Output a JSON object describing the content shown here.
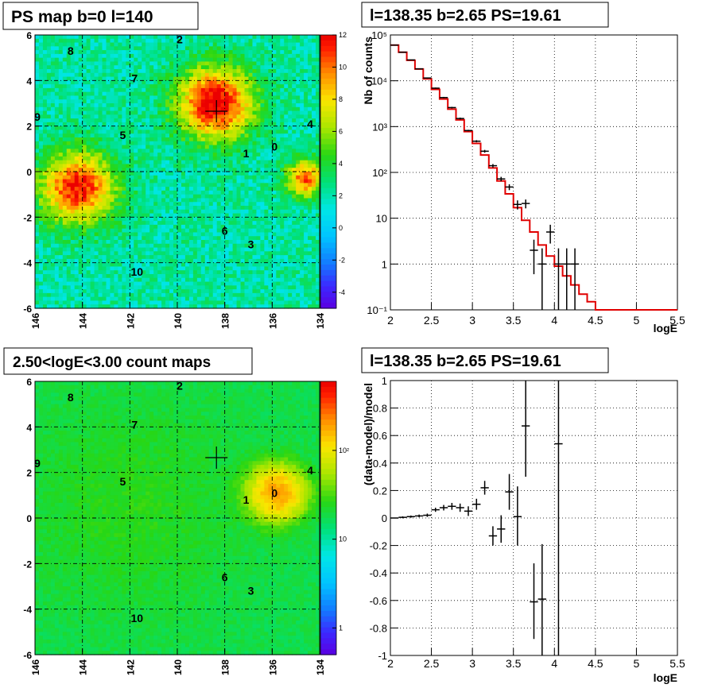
{
  "chart_data": [
    {
      "type": "heatmap",
      "title": "PS map b=0 l=140",
      "xticks": [
        "146",
        "144",
        "142",
        "140",
        "138",
        "136",
        "134"
      ],
      "yticks": [
        "6",
        "4",
        "2",
        "0",
        "-2",
        "-4",
        "-6"
      ],
      "xlim": [
        146,
        134
      ],
      "ylim": [
        -6,
        6
      ],
      "colorbar": {
        "scale": "linear",
        "range": [
          -5,
          12
        ],
        "ticks": [
          "12",
          "10",
          "8",
          "6",
          "4",
          "2",
          "0",
          "-2",
          "-4"
        ]
      },
      "background_level": 2.2,
      "blobs": [
        {
          "l": 138.4,
          "b": 3.0,
          "width": 1.1,
          "amplitude": 10.5
        },
        {
          "l": 144.2,
          "b": -0.7,
          "width": 1.1,
          "amplitude": 9.5
        },
        {
          "l": 134.6,
          "b": -0.3,
          "width": 0.55,
          "amplitude": 8.5
        }
      ],
      "marker": {
        "l": 138.35,
        "b": 2.65
      },
      "source_labels": [
        {
          "text": "0",
          "l": 135.9,
          "b": 1.1
        },
        {
          "text": "1",
          "l": 137.1,
          "b": 0.8
        },
        {
          "text": "2",
          "l": 139.9,
          "b": 5.8
        },
        {
          "text": "3",
          "l": 136.9,
          "b": -3.2
        },
        {
          "text": "4",
          "l": 134.4,
          "b": 2.1
        },
        {
          "text": "5",
          "l": 142.3,
          "b": 1.6
        },
        {
          "text": "6",
          "l": 138.0,
          "b": -2.6
        },
        {
          "text": "7",
          "l": 141.8,
          "b": 4.1
        },
        {
          "text": "8",
          "l": 144.5,
          "b": 5.3
        },
        {
          "text": "9",
          "l": 145.9,
          "b": 2.4
        },
        {
          "text": "10",
          "l": 141.7,
          "b": -4.4
        }
      ]
    },
    {
      "type": "line",
      "title": "l=138.35 b=2.65 PS=19.61",
      "xlabel": "logE",
      "ylabel": "Nb of counts",
      "yscale": "log",
      "xlim": [
        2,
        5.5
      ],
      "ylim": [
        0.1,
        100000
      ],
      "xticks": [
        "2",
        "2.5",
        "3",
        "3.5",
        "4",
        "4.5",
        "5",
        "5.5"
      ],
      "yticks": [
        "10⁵",
        "10⁴",
        "10³",
        "10²",
        "10",
        "1",
        "10⁻¹"
      ],
      "grid": true,
      "model_step": {
        "bin_edges": [
          2.0,
          2.1,
          2.2,
          2.3,
          2.4,
          2.5,
          2.6,
          2.7,
          2.8,
          2.9,
          3.0,
          3.1,
          3.2,
          3.3,
          3.4,
          3.5,
          3.6,
          3.7,
          3.8,
          3.9,
          4.0,
          4.1,
          4.2,
          4.3,
          4.4,
          4.5,
          4.6,
          4.7,
          4.8,
          4.9,
          5.0,
          5.1,
          5.2,
          5.3,
          5.4,
          5.5
        ],
        "values": [
          60000,
          42000,
          28000,
          18000,
          11000,
          6500,
          4000,
          2400,
          1400,
          780,
          430,
          240,
          125,
          65,
          34,
          17,
          9,
          5,
          2.6,
          1.5,
          0.9,
          0.55,
          0.35,
          0.22,
          0.15,
          0.1,
          0.1,
          0.1,
          0.1,
          0.1,
          0.1,
          0.1,
          0.1,
          0.1,
          0.1
        ]
      },
      "data_points": [
        {
          "x": 2.05,
          "y": 60000,
          "elo": 59000,
          "ehi": 61000
        },
        {
          "x": 2.15,
          "y": 42000,
          "elo": 41300,
          "ehi": 42700
        },
        {
          "x": 2.25,
          "y": 28500,
          "elo": 28000,
          "ehi": 29000
        },
        {
          "x": 2.35,
          "y": 18200,
          "elo": 17800,
          "ehi": 18600
        },
        {
          "x": 2.45,
          "y": 11500,
          "elo": 11200,
          "ehi": 11800
        },
        {
          "x": 2.55,
          "y": 6900,
          "elo": 6700,
          "ehi": 7100
        },
        {
          "x": 2.65,
          "y": 4300,
          "elo": 4150,
          "ehi": 4450
        },
        {
          "x": 2.75,
          "y": 2600,
          "elo": 2500,
          "ehi": 2700
        },
        {
          "x": 2.85,
          "y": 1500,
          "elo": 1430,
          "ehi": 1570
        },
        {
          "x": 2.95,
          "y": 820,
          "elo": 790,
          "ehi": 850
        },
        {
          "x": 3.05,
          "y": 480,
          "elo": 455,
          "ehi": 505
        },
        {
          "x": 3.15,
          "y": 290,
          "elo": 270,
          "ehi": 310
        },
        {
          "x": 3.25,
          "y": 140,
          "elo": 128,
          "ehi": 152
        },
        {
          "x": 3.35,
          "y": 72,
          "elo": 64,
          "ehi": 80
        },
        {
          "x": 3.45,
          "y": 48,
          "elo": 41,
          "ehi": 55
        },
        {
          "x": 3.55,
          "y": 20,
          "elo": 15.5,
          "ehi": 24.5
        },
        {
          "x": 3.65,
          "y": 21,
          "elo": 16.4,
          "ehi": 25.6
        },
        {
          "x": 3.75,
          "y": 2,
          "elo": 0.6,
          "ehi": 3.4
        },
        {
          "x": 3.85,
          "y": 1,
          "elo": 0.1,
          "ehi": 2.2
        },
        {
          "x": 3.95,
          "y": 5,
          "elo": 2.8,
          "ehi": 7.2
        },
        {
          "x": 4.05,
          "y": 1,
          "elo": 0.1,
          "ehi": 2.2
        },
        {
          "x": 4.15,
          "y": 1,
          "elo": 0.1,
          "ehi": 2.2
        },
        {
          "x": 4.25,
          "y": 1,
          "elo": 0.1,
          "ehi": 2.2
        }
      ]
    },
    {
      "type": "heatmap",
      "title": "2.50<logE<3.00 count maps",
      "xticks": [
        "146",
        "144",
        "142",
        "140",
        "138",
        "136",
        "134"
      ],
      "yticks": [
        "6",
        "4",
        "2",
        "0",
        "-2",
        "-4",
        "-6"
      ],
      "xlim": [
        146,
        134
      ],
      "ylim": [
        -6,
        6
      ],
      "colorbar": {
        "scale": "log",
        "range": [
          0.5,
          600
        ],
        "ticks": [
          "10²",
          "10",
          "1"
        ]
      },
      "background_level": 18,
      "blobs": [
        {
          "l": 135.8,
          "b": 1.1,
          "width": 0.7,
          "amplitude": 170
        },
        {
          "l": 142.0,
          "b": 0.5,
          "width": 3.0,
          "amplitude": 8
        }
      ],
      "marker": {
        "l": 138.35,
        "b": 2.65
      },
      "source_labels": [
        {
          "text": "0",
          "l": 135.9,
          "b": 1.1
        },
        {
          "text": "1",
          "l": 137.1,
          "b": 0.8
        },
        {
          "text": "2",
          "l": 139.9,
          "b": 5.8
        },
        {
          "text": "3",
          "l": 136.9,
          "b": -3.2
        },
        {
          "text": "4",
          "l": 134.4,
          "b": 2.1
        },
        {
          "text": "5",
          "l": 142.3,
          "b": 1.6
        },
        {
          "text": "6",
          "l": 138.0,
          "b": -2.6
        },
        {
          "text": "7",
          "l": 141.8,
          "b": 4.1
        },
        {
          "text": "8",
          "l": 144.5,
          "b": 5.3
        },
        {
          "text": "9",
          "l": 145.9,
          "b": 2.4
        },
        {
          "text": "10",
          "l": 141.7,
          "b": -4.4
        }
      ]
    },
    {
      "type": "scatter",
      "title": "l=138.35 b=2.65 PS=19.61",
      "xlabel": "logE",
      "ylabel": "(data-model)/model",
      "xlim": [
        2,
        5.5
      ],
      "ylim": [
        -1,
        1
      ],
      "xticks": [
        "2",
        "2.5",
        "3",
        "3.5",
        "4",
        "4.5",
        "5",
        "5.5"
      ],
      "yticks": [
        "1",
        "0.8",
        "0.6",
        "0.4",
        "0.2",
        "0",
        "-0.2",
        "-0.4",
        "-0.6",
        "-0.8",
        "-1"
      ],
      "grid": true,
      "data_points": [
        {
          "x": 2.05,
          "y": 0.0,
          "elo": 0.0,
          "ehi": 0.0
        },
        {
          "x": 2.15,
          "y": 0.005,
          "elo": -0.002,
          "ehi": 0.012
        },
        {
          "x": 2.25,
          "y": 0.01,
          "elo": 0.002,
          "ehi": 0.018
        },
        {
          "x": 2.35,
          "y": 0.015,
          "elo": 0.005,
          "ehi": 0.025
        },
        {
          "x": 2.45,
          "y": 0.02,
          "elo": 0.008,
          "ehi": 0.032
        },
        {
          "x": 2.55,
          "y": 0.06,
          "elo": 0.045,
          "ehi": 0.075
        },
        {
          "x": 2.65,
          "y": 0.075,
          "elo": 0.055,
          "ehi": 0.095
        },
        {
          "x": 2.75,
          "y": 0.085,
          "elo": 0.06,
          "ehi": 0.11
        },
        {
          "x": 2.85,
          "y": 0.075,
          "elo": 0.045,
          "ehi": 0.105
        },
        {
          "x": 2.95,
          "y": 0.05,
          "elo": 0.015,
          "ehi": 0.085
        },
        {
          "x": 3.05,
          "y": 0.1,
          "elo": 0.06,
          "ehi": 0.14
        },
        {
          "x": 3.15,
          "y": 0.22,
          "elo": 0.17,
          "ehi": 0.27
        },
        {
          "x": 3.25,
          "y": -0.13,
          "elo": -0.2,
          "ehi": -0.06
        },
        {
          "x": 3.35,
          "y": -0.08,
          "elo": -0.18,
          "ehi": 0.02
        },
        {
          "x": 3.45,
          "y": 0.19,
          "elo": 0.06,
          "ehi": 0.32
        },
        {
          "x": 3.55,
          "y": 0.01,
          "elo": -0.2,
          "ehi": 0.23
        },
        {
          "x": 3.65,
          "y": 0.67,
          "elo": 0.3,
          "ehi": 1.0
        },
        {
          "x": 3.75,
          "y": -0.61,
          "elo": -0.88,
          "ehi": -0.33
        },
        {
          "x": 3.85,
          "y": -0.59,
          "elo": -1.0,
          "ehi": -0.19
        },
        {
          "x": 4.05,
          "y": 0.54,
          "elo": -1.0,
          "ehi": 1.0
        }
      ]
    }
  ]
}
